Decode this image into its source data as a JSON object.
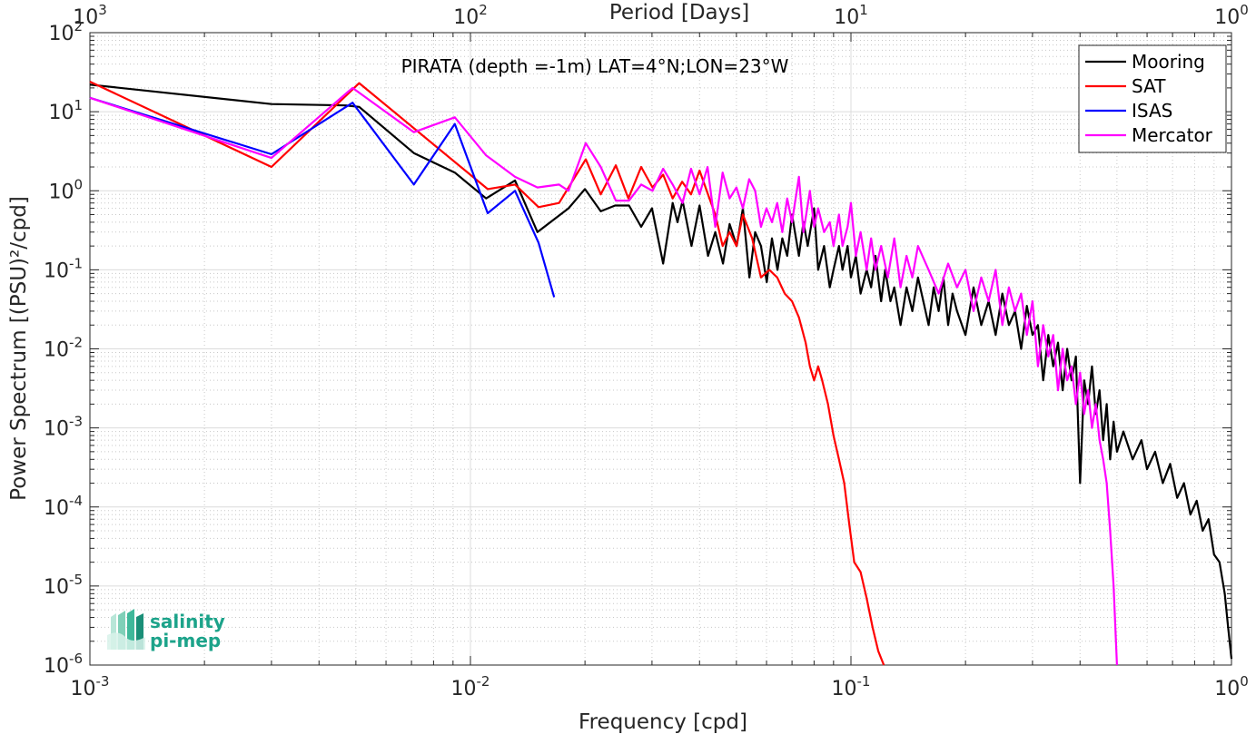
{
  "chart_data": {
    "type": "line",
    "title": "PIRATA (depth =-1m) LAT=4°N;LON=23°W",
    "xlabel": "Frequency [cpd]",
    "ylabel": "Power Spectrum [(PSU)²/cpd]",
    "top_xlabel": "Period [Days]",
    "xscale": "log",
    "yscale": "log",
    "xlim": [
      0.001,
      1
    ],
    "ylim": [
      1e-06,
      100
    ],
    "grid": true,
    "legend_position": "top-right",
    "x_ticks": [
      {
        "value": 0.001,
        "base": "10",
        "exp": "-3"
      },
      {
        "value": 0.01,
        "base": "10",
        "exp": "-2"
      },
      {
        "value": 0.1,
        "base": "10",
        "exp": "-1"
      },
      {
        "value": 1,
        "base": "10",
        "exp": "0"
      }
    ],
    "top_ticks": [
      {
        "value": 1000,
        "base": "10",
        "exp": "3"
      },
      {
        "value": 100,
        "base": "10",
        "exp": "2"
      },
      {
        "value": 10,
        "base": "10",
        "exp": "1"
      },
      {
        "value": 1,
        "base": "10",
        "exp": "0"
      }
    ],
    "y_ticks": [
      {
        "value": 1e-06,
        "base": "10",
        "exp": "-6"
      },
      {
        "value": 1e-05,
        "base": "10",
        "exp": "-5"
      },
      {
        "value": 0.0001,
        "base": "10",
        "exp": "-4"
      },
      {
        "value": 0.001,
        "base": "10",
        "exp": "-3"
      },
      {
        "value": 0.01,
        "base": "10",
        "exp": "-2"
      },
      {
        "value": 0.1,
        "base": "10",
        "exp": "-1"
      },
      {
        "value": 1,
        "base": "10",
        "exp": "0"
      },
      {
        "value": 10,
        "base": "10",
        "exp": "1"
      },
      {
        "value": 100,
        "base": "10",
        "exp": "2"
      }
    ],
    "series": [
      {
        "name": "Mooring",
        "color": "#000000",
        "points": [
          [
            0.001,
            22
          ],
          [
            0.003,
            12.5
          ],
          [
            0.0047,
            12
          ],
          [
            0.0051,
            11.5
          ],
          [
            0.0071,
            3
          ],
          [
            0.0091,
            1.7
          ],
          [
            0.011,
            0.8
          ],
          [
            0.0131,
            1.35
          ],
          [
            0.015,
            0.3
          ],
          [
            0.0181,
            0.6
          ],
          [
            0.02,
            1.05
          ],
          [
            0.022,
            0.55
          ],
          [
            0.024,
            0.65
          ],
          [
            0.0261,
            0.65
          ],
          [
            0.0281,
            0.35
          ],
          [
            0.03,
            0.6
          ],
          [
            0.0321,
            0.12
          ],
          [
            0.034,
            0.7
          ],
          [
            0.035,
            0.4
          ],
          [
            0.0361,
            0.75
          ],
          [
            0.0381,
            0.2
          ],
          [
            0.04,
            0.65
          ],
          [
            0.0421,
            0.15
          ],
          [
            0.044,
            0.3
          ],
          [
            0.0461,
            0.12
          ],
          [
            0.048,
            0.38
          ],
          [
            0.0501,
            0.2
          ],
          [
            0.052,
            0.6
          ],
          [
            0.0541,
            0.08
          ],
          [
            0.056,
            0.3
          ],
          [
            0.058,
            0.2
          ],
          [
            0.0601,
            0.07
          ],
          [
            0.062,
            0.25
          ],
          [
            0.0641,
            0.1
          ],
          [
            0.066,
            0.25
          ],
          [
            0.068,
            0.15
          ],
          [
            0.07,
            0.5
          ],
          [
            0.073,
            0.15
          ],
          [
            0.075,
            0.4
          ],
          [
            0.077,
            0.2
          ],
          [
            0.08,
            0.6
          ],
          [
            0.082,
            0.1
          ],
          [
            0.085,
            0.2
          ],
          [
            0.088,
            0.06
          ],
          [
            0.09,
            0.1
          ],
          [
            0.093,
            0.2
          ],
          [
            0.095,
            0.1
          ],
          [
            0.098,
            0.2
          ],
          [
            0.1,
            0.08
          ],
          [
            0.103,
            0.15
          ],
          [
            0.106,
            0.05
          ],
          [
            0.11,
            0.1
          ],
          [
            0.113,
            0.06
          ],
          [
            0.116,
            0.15
          ],
          [
            0.12,
            0.04
          ],
          [
            0.123,
            0.1
          ],
          [
            0.127,
            0.04
          ],
          [
            0.13,
            0.06
          ],
          [
            0.135,
            0.02
          ],
          [
            0.14,
            0.06
          ],
          [
            0.145,
            0.03
          ],
          [
            0.15,
            0.08
          ],
          [
            0.155,
            0.04
          ],
          [
            0.16,
            0.02
          ],
          [
            0.165,
            0.06
          ],
          [
            0.17,
            0.03
          ],
          [
            0.175,
            0.08
          ],
          [
            0.18,
            0.02
          ],
          [
            0.185,
            0.05
          ],
          [
            0.19,
            0.03
          ],
          [
            0.2,
            0.015
          ],
          [
            0.21,
            0.06
          ],
          [
            0.22,
            0.02
          ],
          [
            0.23,
            0.04
          ],
          [
            0.24,
            0.015
          ],
          [
            0.25,
            0.05
          ],
          [
            0.26,
            0.02
          ],
          [
            0.27,
            0.03
          ],
          [
            0.28,
            0.01
          ],
          [
            0.29,
            0.035
          ],
          [
            0.3,
            0.015
          ],
          [
            0.31,
            0.02
          ],
          [
            0.32,
            0.004
          ],
          [
            0.33,
            0.015
          ],
          [
            0.34,
            0.006
          ],
          [
            0.35,
            0.012
          ],
          [
            0.36,
            0.003
          ],
          [
            0.37,
            0.01
          ],
          [
            0.38,
            0.004
          ],
          [
            0.39,
            0.008
          ],
          [
            0.4,
            0.0002
          ],
          [
            0.41,
            0.004
          ],
          [
            0.42,
            0.002
          ],
          [
            0.43,
            0.006
          ],
          [
            0.44,
            0.0015
          ],
          [
            0.45,
            0.003
          ],
          [
            0.46,
            0.0007
          ],
          [
            0.47,
            0.002
          ],
          [
            0.48,
            0.0004
          ],
          [
            0.49,
            0.0012
          ],
          [
            0.5,
            0.0005
          ],
          [
            0.52,
            0.0009
          ],
          [
            0.55,
            0.0004
          ],
          [
            0.58,
            0.0007
          ],
          [
            0.6,
            0.0003
          ],
          [
            0.63,
            0.0005
          ],
          [
            0.66,
            0.0002
          ],
          [
            0.69,
            0.00035
          ],
          [
            0.72,
            0.00013
          ],
          [
            0.75,
            0.0002
          ],
          [
            0.78,
            8e-05
          ],
          [
            0.81,
            0.00012
          ],
          [
            0.84,
            5e-05
          ],
          [
            0.87,
            7e-05
          ],
          [
            0.9,
            2.5e-05
          ],
          [
            0.93,
            2e-05
          ],
          [
            0.96,
            8e-06
          ],
          [
            0.98,
            3e-06
          ],
          [
            1.0,
            1.2e-06
          ]
        ]
      },
      {
        "name": "SAT",
        "color": "#ff0000",
        "points": [
          [
            0.001,
            24
          ],
          [
            0.003,
            2
          ],
          [
            0.0051,
            23
          ],
          [
            0.0111,
            1.05
          ],
          [
            0.0131,
            1.2
          ],
          [
            0.0151,
            0.62
          ],
          [
            0.0171,
            0.7
          ],
          [
            0.0201,
            2.5
          ],
          [
            0.022,
            0.9
          ],
          [
            0.0241,
            2.1
          ],
          [
            0.026,
            0.8
          ],
          [
            0.0281,
            2.0
          ],
          [
            0.0301,
            1.1
          ],
          [
            0.0321,
            1.6
          ],
          [
            0.034,
            0.8
          ],
          [
            0.036,
            1.3
          ],
          [
            0.038,
            0.9
          ],
          [
            0.04,
            1.8
          ],
          [
            0.0421,
            0.9
          ],
          [
            0.044,
            0.5
          ],
          [
            0.046,
            0.2
          ],
          [
            0.048,
            0.3
          ],
          [
            0.05,
            0.2
          ],
          [
            0.052,
            0.5
          ],
          [
            0.055,
            0.25
          ],
          [
            0.058,
            0.08
          ],
          [
            0.061,
            0.1
          ],
          [
            0.064,
            0.08
          ],
          [
            0.067,
            0.05
          ],
          [
            0.07,
            0.04
          ],
          [
            0.073,
            0.025
          ],
          [
            0.076,
            0.012
          ],
          [
            0.078,
            0.006
          ],
          [
            0.08,
            0.004
          ],
          [
            0.082,
            0.006
          ],
          [
            0.084,
            0.004
          ],
          [
            0.087,
            0.002
          ],
          [
            0.09,
            0.0008
          ],
          [
            0.093,
            0.0004
          ],
          [
            0.096,
            0.0002
          ],
          [
            0.099,
            6e-05
          ],
          [
            0.102,
            2e-05
          ],
          [
            0.106,
            1.5e-05
          ],
          [
            0.11,
            7e-06
          ],
          [
            0.114,
            3e-06
          ],
          [
            0.118,
            1.5e-06
          ],
          [
            0.122,
            1e-06
          ]
        ]
      },
      {
        "name": "ISAS",
        "color": "#0000ff",
        "points": [
          [
            0.001,
            15
          ],
          [
            0.003,
            2.9
          ],
          [
            0.0049,
            13
          ],
          [
            0.0071,
            1.2
          ],
          [
            0.0091,
            7
          ],
          [
            0.0111,
            0.52
          ],
          [
            0.0131,
            1.0
          ],
          [
            0.0151,
            0.22
          ],
          [
            0.0166,
            0.045
          ]
        ]
      },
      {
        "name": "Mercator",
        "color": "#ff00ff",
        "points": [
          [
            0.001,
            15
          ],
          [
            0.003,
            2.6
          ],
          [
            0.0049,
            20
          ],
          [
            0.0071,
            5.5
          ],
          [
            0.0091,
            8.5
          ],
          [
            0.011,
            2.8
          ],
          [
            0.0131,
            1.5
          ],
          [
            0.015,
            1.1
          ],
          [
            0.0171,
            1.2
          ],
          [
            0.0181,
            1.0
          ],
          [
            0.0201,
            4.0
          ],
          [
            0.022,
            2.0
          ],
          [
            0.0241,
            0.75
          ],
          [
            0.0261,
            0.75
          ],
          [
            0.0281,
            1.2
          ],
          [
            0.0301,
            1.0
          ],
          [
            0.0321,
            1.9
          ],
          [
            0.034,
            1.2
          ],
          [
            0.0361,
            0.7
          ],
          [
            0.038,
            1.9
          ],
          [
            0.04,
            0.9
          ],
          [
            0.042,
            2.0
          ],
          [
            0.044,
            0.35
          ],
          [
            0.046,
            1.7
          ],
          [
            0.048,
            0.8
          ],
          [
            0.05,
            1.1
          ],
          [
            0.052,
            0.6
          ],
          [
            0.054,
            1.4
          ],
          [
            0.056,
            1.0
          ],
          [
            0.058,
            0.35
          ],
          [
            0.06,
            0.6
          ],
          [
            0.062,
            0.4
          ],
          [
            0.064,
            0.7
          ],
          [
            0.066,
            0.3
          ],
          [
            0.068,
            0.8
          ],
          [
            0.07,
            0.4
          ],
          [
            0.073,
            1.5
          ],
          [
            0.075,
            0.3
          ],
          [
            0.078,
            1.0
          ],
          [
            0.08,
            0.35
          ],
          [
            0.082,
            0.6
          ],
          [
            0.085,
            0.3
          ],
          [
            0.088,
            0.4
          ],
          [
            0.09,
            0.2
          ],
          [
            0.093,
            0.5
          ],
          [
            0.095,
            0.2
          ],
          [
            0.098,
            0.35
          ],
          [
            0.1,
            0.7
          ],
          [
            0.103,
            0.15
          ],
          [
            0.106,
            0.3
          ],
          [
            0.11,
            0.1
          ],
          [
            0.113,
            0.25
          ],
          [
            0.116,
            0.1
          ],
          [
            0.12,
            0.2
          ],
          [
            0.125,
            0.08
          ],
          [
            0.13,
            0.25
          ],
          [
            0.135,
            0.06
          ],
          [
            0.14,
            0.15
          ],
          [
            0.145,
            0.08
          ],
          [
            0.15,
            0.2
          ],
          [
            0.16,
            0.1
          ],
          [
            0.17,
            0.05
          ],
          [
            0.18,
            0.12
          ],
          [
            0.19,
            0.06
          ],
          [
            0.2,
            0.1
          ],
          [
            0.21,
            0.03
          ],
          [
            0.22,
            0.08
          ],
          [
            0.23,
            0.04
          ],
          [
            0.24,
            0.1
          ],
          [
            0.25,
            0.02
          ],
          [
            0.26,
            0.06
          ],
          [
            0.27,
            0.03
          ],
          [
            0.28,
            0.05
          ],
          [
            0.29,
            0.015
          ],
          [
            0.3,
            0.04
          ],
          [
            0.31,
            0.006
          ],
          [
            0.32,
            0.02
          ],
          [
            0.33,
            0.008
          ],
          [
            0.34,
            0.015
          ],
          [
            0.35,
            0.003
          ],
          [
            0.36,
            0.01
          ],
          [
            0.37,
            0.004
          ],
          [
            0.38,
            0.006
          ],
          [
            0.39,
            0.002
          ],
          [
            0.4,
            0.005
          ],
          [
            0.41,
            0.0015
          ],
          [
            0.42,
            0.003
          ],
          [
            0.43,
            0.001
          ],
          [
            0.44,
            0.002
          ],
          [
            0.45,
            0.0007
          ],
          [
            0.46,
            0.0004
          ],
          [
            0.47,
            0.0002
          ],
          [
            0.48,
            5e-05
          ],
          [
            0.49,
            1e-05
          ],
          [
            0.5,
            1e-06
          ]
        ]
      }
    ]
  },
  "logo": {
    "line1": "salinity",
    "line2": "pi-mep"
  }
}
